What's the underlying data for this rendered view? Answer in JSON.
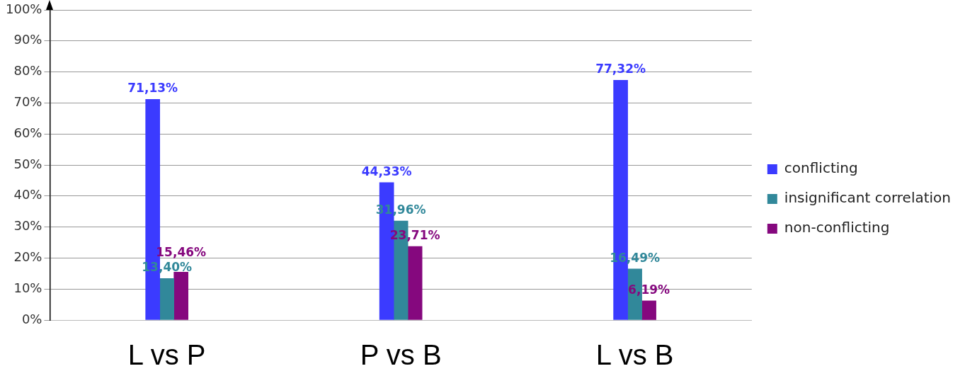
{
  "chart_data": {
    "type": "bar",
    "categories": [
      "L vs P",
      "P vs B",
      "L vs B"
    ],
    "series": [
      {
        "name": "conflicting",
        "color": "#3b3bff",
        "values": [
          71.13,
          44.33,
          77.32
        ],
        "value_labels": [
          "71,13%",
          "44,33%",
          "77,32%"
        ]
      },
      {
        "name": "insignificant correlation",
        "color": "#31889a",
        "values": [
          13.4,
          31.96,
          16.49
        ],
        "value_labels": [
          "13,40%",
          "31,96%",
          "16,49%"
        ]
      },
      {
        "name": "non-conflicting",
        "color": "#85087e",
        "values": [
          15.46,
          23.71,
          6.19
        ],
        "value_labels": [
          "15,46%",
          "23,71%",
          "6,19%"
        ]
      }
    ],
    "ylim": [
      0,
      100
    ],
    "yticks": [
      {
        "value": 0,
        "label": "0%"
      },
      {
        "value": 10,
        "label": "10%"
      },
      {
        "value": 20,
        "label": "20%"
      },
      {
        "value": 30,
        "label": "30%"
      },
      {
        "value": 40,
        "label": "40%"
      },
      {
        "value": 50,
        "label": "50%"
      },
      {
        "value": 60,
        "label": "60%"
      },
      {
        "value": 70,
        "label": "70%"
      },
      {
        "value": 80,
        "label": "80%"
      },
      {
        "value": 90,
        "label": "90%"
      },
      {
        "value": 100,
        "label": "100%"
      }
    ],
    "grid": "y",
    "legend": "right"
  }
}
